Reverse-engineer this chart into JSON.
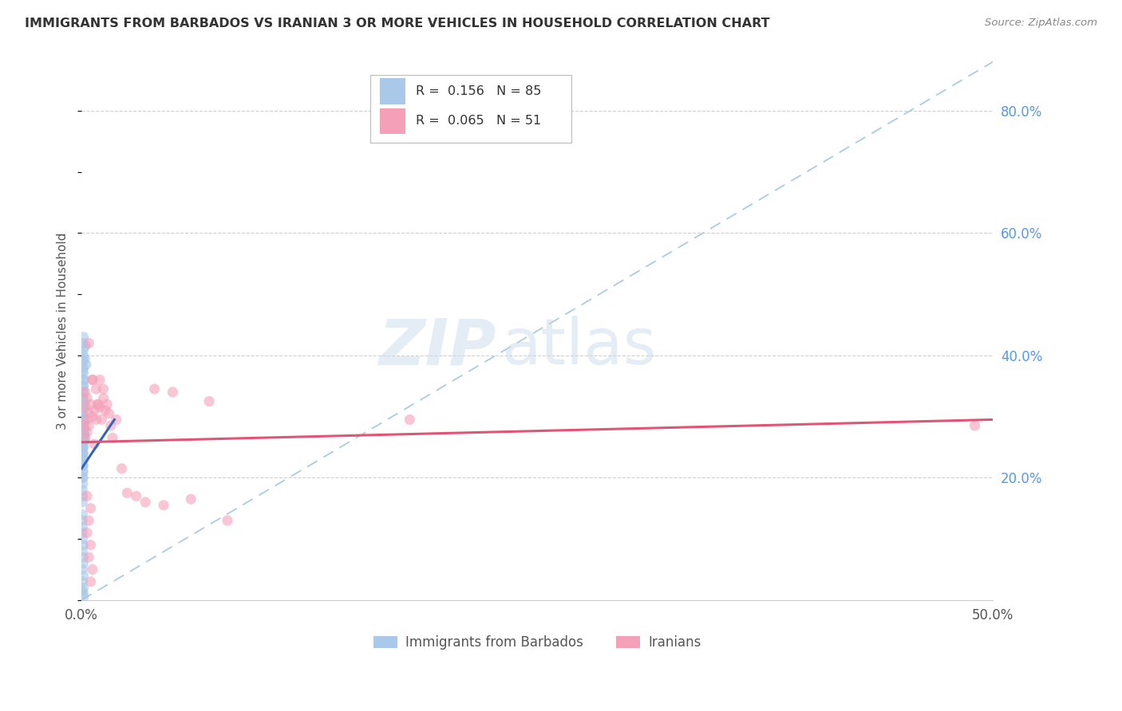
{
  "title": "IMMIGRANTS FROM BARBADOS VS IRANIAN 3 OR MORE VEHICLES IN HOUSEHOLD CORRELATION CHART",
  "source": "Source: ZipAtlas.com",
  "ylabel": "3 or more Vehicles in Household",
  "xlim": [
    0.0,
    0.5
  ],
  "ylim": [
    0.0,
    0.88
  ],
  "xticks": [
    0.0,
    0.1,
    0.2,
    0.3,
    0.4,
    0.5
  ],
  "xticklabels": [
    "0.0%",
    "",
    "",
    "",
    "",
    "50.0%"
  ],
  "yticks_right": [
    0.2,
    0.4,
    0.6,
    0.8
  ],
  "yticklabels_right": [
    "20.0%",
    "40.0%",
    "60.0%",
    "80.0%"
  ],
  "legend1_label": "Immigrants from Barbados",
  "legend2_label": "Iranians",
  "legend1_color": "#aac8e8",
  "legend2_color": "#f4a0b8",
  "R1": 0.156,
  "N1": 85,
  "R2": 0.065,
  "N2": 51,
  "blue_scatter_x": [
    0.0005,
    0.0008,
    0.001,
    0.0005,
    0.001,
    0.0015,
    0.0008,
    0.001,
    0.0005,
    0.0012,
    0.0008,
    0.001,
    0.0005,
    0.0015,
    0.001,
    0.0008,
    0.0012,
    0.001,
    0.0005,
    0.0008,
    0.001,
    0.0015,
    0.0008,
    0.001,
    0.0005,
    0.0012,
    0.0008,
    0.001,
    0.0005,
    0.0015,
    0.001,
    0.0008,
    0.0012,
    0.001,
    0.0005,
    0.0008,
    0.001,
    0.0015,
    0.0008,
    0.001,
    0.0005,
    0.0012,
    0.0008,
    0.001,
    0.0005,
    0.0015,
    0.001,
    0.0008,
    0.0012,
    0.001,
    0.0005,
    0.0008,
    0.001,
    0.0015,
    0.0008,
    0.001,
    0.0005,
    0.0012,
    0.0008,
    0.001,
    0.0005,
    0.0015,
    0.001,
    0.0008,
    0.0012,
    0.001,
    0.0005,
    0.0008,
    0.001,
    0.0015,
    0.0008,
    0.001,
    0.0005,
    0.0012,
    0.0008,
    0.001,
    0.0005,
    0.0015,
    0.001,
    0.0008,
    0.0012,
    0.002,
    0.0018,
    0.0025,
    0.0008
  ],
  "blue_scatter_y": [
    0.25,
    0.27,
    0.3,
    0.22,
    0.28,
    0.26,
    0.24,
    0.31,
    0.2,
    0.29,
    0.23,
    0.32,
    0.18,
    0.27,
    0.33,
    0.21,
    0.26,
    0.34,
    0.16,
    0.25,
    0.35,
    0.28,
    0.19,
    0.36,
    0.14,
    0.27,
    0.17,
    0.37,
    0.13,
    0.26,
    0.38,
    0.22,
    0.28,
    0.39,
    0.12,
    0.24,
    0.4,
    0.27,
    0.21,
    0.41,
    0.11,
    0.29,
    0.23,
    0.42,
    0.1,
    0.28,
    0.43,
    0.2,
    0.3,
    0.09,
    0.08,
    0.26,
    0.07,
    0.29,
    0.24,
    0.06,
    0.05,
    0.28,
    0.22,
    0.04,
    0.03,
    0.27,
    0.02,
    0.3,
    0.25,
    0.01,
    0.015,
    0.29,
    0.23,
    0.32,
    0.27,
    0.005,
    0.31,
    0.26,
    0.33,
    0.28,
    0.34,
    0.29,
    0.35,
    0.3,
    0.36,
    0.415,
    0.395,
    0.385,
    0.375
  ],
  "pink_scatter_x": [
    0.001,
    0.002,
    0.003,
    0.002,
    0.004,
    0.003,
    0.005,
    0.004,
    0.002,
    0.003,
    0.006,
    0.004,
    0.007,
    0.003,
    0.008,
    0.005,
    0.009,
    0.004,
    0.006,
    0.003,
    0.01,
    0.005,
    0.011,
    0.004,
    0.012,
    0.006,
    0.013,
    0.005,
    0.014,
    0.007,
    0.015,
    0.006,
    0.016,
    0.008,
    0.017,
    0.009,
    0.019,
    0.01,
    0.022,
    0.012,
    0.025,
    0.03,
    0.035,
    0.04,
    0.045,
    0.05,
    0.06,
    0.07,
    0.08,
    0.18,
    0.49
  ],
  "pink_scatter_y": [
    0.285,
    0.315,
    0.33,
    0.265,
    0.42,
    0.295,
    0.32,
    0.305,
    0.34,
    0.275,
    0.36,
    0.285,
    0.31,
    0.17,
    0.295,
    0.15,
    0.32,
    0.13,
    0.3,
    0.11,
    0.315,
    0.09,
    0.295,
    0.07,
    0.33,
    0.05,
    0.31,
    0.03,
    0.32,
    0.255,
    0.305,
    0.36,
    0.285,
    0.345,
    0.265,
    0.32,
    0.295,
    0.36,
    0.215,
    0.345,
    0.175,
    0.17,
    0.16,
    0.345,
    0.155,
    0.34,
    0.165,
    0.325,
    0.13,
    0.295,
    0.285
  ],
  "blue_line_x": [
    0.0,
    0.018
  ],
  "blue_line_y": [
    0.215,
    0.295
  ],
  "pink_line_x": [
    0.0,
    0.5
  ],
  "pink_line_y": [
    0.258,
    0.295
  ],
  "diag_line_x": [
    0.0,
    0.5
  ],
  "diag_line_y": [
    0.0,
    0.88
  ],
  "grid_color": "#d0d0d0",
  "scatter_alpha": 0.6,
  "scatter_size": 90,
  "bg_color": "#ffffff",
  "watermark_zip": "ZIP",
  "watermark_atlas": "atlas",
  "watermark_color_zip": "#c5d8ea",
  "watermark_color_atlas": "#c5d8ea"
}
